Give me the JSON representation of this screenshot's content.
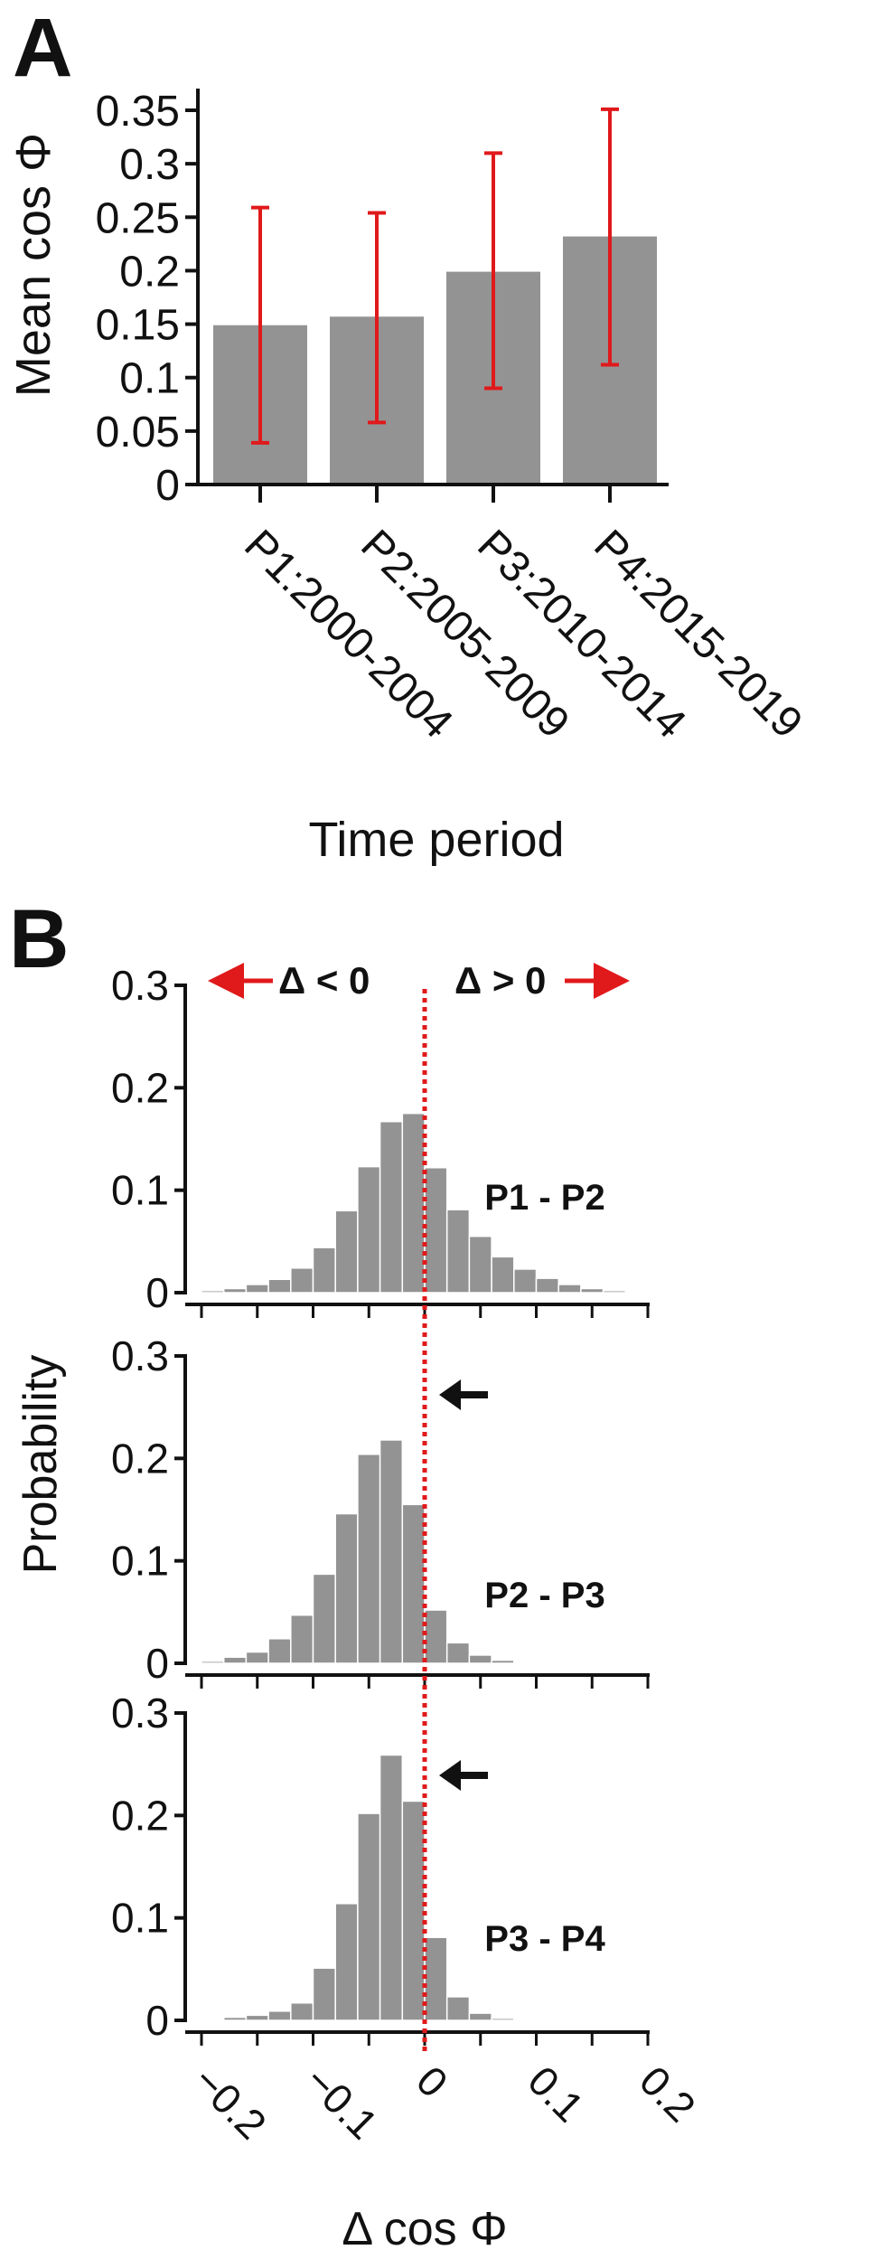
{
  "panel_a": {
    "label": "A",
    "chart_data": {
      "type": "bar",
      "categories": [
        "P1:2000-2004",
        "P2:2005-2009",
        "P3:2010-2014",
        "P4:2015-2019"
      ],
      "values": [
        0.149,
        0.157,
        0.199,
        0.232
      ],
      "error_low": [
        0.039,
        0.058,
        0.09,
        0.112
      ],
      "error_high": [
        0.259,
        0.254,
        0.31,
        0.351
      ],
      "xlabel": "Time period",
      "ylabel": "Mean cos Φ",
      "ylim": [
        0,
        0.35
      ],
      "yticks": [
        "0",
        "0.05",
        "0.1",
        "0.15",
        "0.2",
        "0.25",
        "0.3",
        "0.35"
      ],
      "ytick_values": [
        0,
        0.05,
        0.1,
        0.15,
        0.2,
        0.25,
        0.3,
        0.35
      ],
      "bar_color": "#939393",
      "error_color": "#e0191b",
      "grid": false
    }
  },
  "panel_b": {
    "label": "B",
    "chart_data": {
      "type": "bar",
      "xlabel": "Δ cos Φ",
      "ylabel": "Probability",
      "xlim": [
        -0.2,
        0.2
      ],
      "xticks": [
        "−0.2",
        "−0.1",
        "0",
        "0.1",
        "0.2"
      ],
      "xtick_values": [
        -0.2,
        -0.1,
        0,
        0.1,
        0.2
      ],
      "ylim": [
        0,
        0.3
      ],
      "yticks": [
        "0",
        "0.1",
        "0.2",
        "0.3"
      ],
      "ytick_values": [
        0,
        0.1,
        0.2,
        0.3
      ],
      "bin_width": 0.02,
      "bin_centers": [
        -0.19,
        -0.17,
        -0.15,
        -0.13,
        -0.11,
        -0.09,
        -0.07,
        -0.05,
        -0.03,
        -0.01,
        0.01,
        0.03,
        0.05,
        0.07,
        0.09,
        0.11,
        0.13,
        0.15,
        0.17,
        0.19
      ],
      "reference_line_x": 0,
      "reference_color": "#e0191b",
      "bar_color": "#939393",
      "left_annotation": "Δ < 0",
      "right_annotation": "Δ > 0",
      "series": [
        {
          "name": "P1 - P2",
          "arrow": false,
          "values": [
            0.002,
            0.004,
            0.008,
            0.013,
            0.024,
            0.044,
            0.08,
            0.123,
            0.167,
            0.175,
            0.122,
            0.081,
            0.055,
            0.035,
            0.023,
            0.014,
            0.008,
            0.004,
            0.002,
            0.001
          ]
        },
        {
          "name": "P2 - P3",
          "arrow": true,
          "values": [
            0.002,
            0.006,
            0.011,
            0.024,
            0.047,
            0.087,
            0.146,
            0.204,
            0.218,
            0.155,
            0.052,
            0.02,
            0.008,
            0.003,
            0.001,
            0.0,
            0.0,
            0.0,
            0.0,
            0.0
          ]
        },
        {
          "name": "P3 - P4",
          "arrow": true,
          "values": [
            0.001,
            0.003,
            0.005,
            0.009,
            0.017,
            0.051,
            0.114,
            0.202,
            0.259,
            0.214,
            0.081,
            0.023,
            0.007,
            0.002,
            0.001,
            0.0,
            0.0,
            0.0,
            0.0,
            0.0
          ]
        }
      ]
    }
  }
}
